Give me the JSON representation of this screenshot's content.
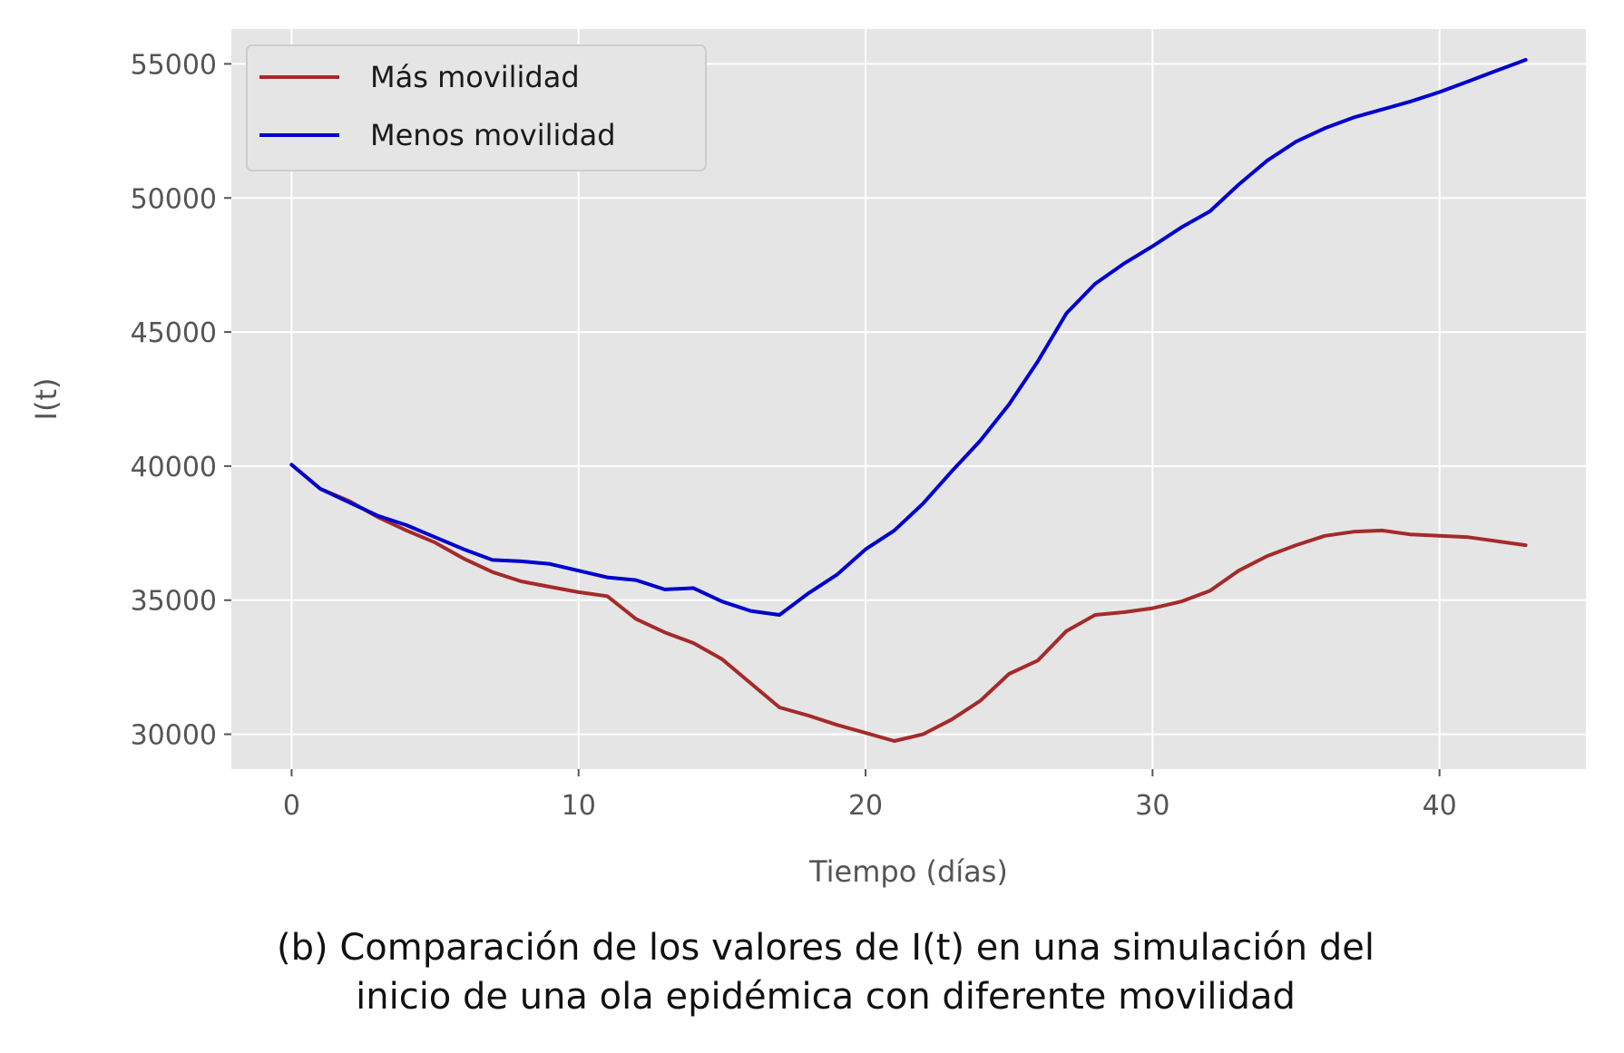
{
  "chart_data": {
    "type": "line",
    "xlabel": "Tiempo (días)",
    "ylabel": "I(t)",
    "xlim": [
      -2.1,
      45.1
    ],
    "ylim": [
      28700,
      56300
    ],
    "xticks": [
      0,
      10,
      20,
      30,
      40
    ],
    "yticks": [
      30000,
      35000,
      40000,
      45000,
      50000,
      55000
    ],
    "grid": true,
    "legend_position": "top-left",
    "x": [
      0,
      1,
      2,
      3,
      4,
      5,
      6,
      7,
      8,
      9,
      10,
      11,
      12,
      13,
      14,
      15,
      16,
      17,
      18,
      19,
      20,
      21,
      22,
      23,
      24,
      25,
      26,
      27,
      28,
      29,
      30,
      31,
      32,
      33,
      34,
      35,
      36,
      37,
      38,
      39,
      40,
      41,
      42,
      43
    ],
    "series": [
      {
        "name": "Más movilidad",
        "color": "#a52a2a",
        "values": [
          40050,
          39150,
          38700,
          38100,
          37600,
          37150,
          36550,
          36050,
          35700,
          35500,
          35300,
          35150,
          34300,
          33800,
          33400,
          32800,
          31900,
          31000,
          30700,
          30350,
          30050,
          29750,
          30000,
          30550,
          31250,
          32250,
          32750,
          33850,
          34450,
          34550,
          34700,
          34950,
          35350,
          36100,
          36650,
          37050,
          37400,
          37550,
          37600,
          37450,
          37400,
          37350,
          37200,
          37050
        ]
      },
      {
        "name": "Menos movilidad",
        "color": "#0000cd",
        "values": [
          40050,
          39150,
          38650,
          38150,
          37800,
          37350,
          36900,
          36500,
          36450,
          36350,
          36100,
          35850,
          35750,
          35400,
          35450,
          34950,
          34600,
          34450,
          35250,
          35950,
          36900,
          37600,
          38600,
          39800,
          40950,
          42300,
          43900,
          45700,
          46800,
          47550,
          48200,
          48900,
          49500,
          50500,
          51400,
          52100,
          52600,
          53000,
          53300,
          53600,
          53950,
          54350,
          54750,
          55150
        ]
      }
    ]
  },
  "caption": {
    "line1": "(b) Comparación de los valores de I(t) en una simulación del",
    "line2": "inicio de una ola epidémica con diferente movilidad"
  },
  "colors": {
    "plot_background": "#e5e5e5",
    "grid": "#ffffff"
  }
}
